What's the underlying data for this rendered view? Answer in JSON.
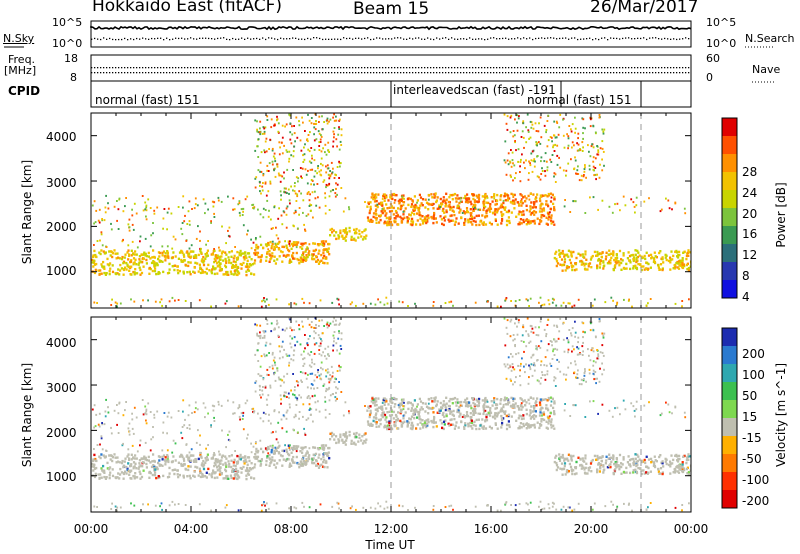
{
  "header": {
    "station": "Hokkaido East (fitACF)",
    "beam": "Beam 15",
    "date": "26/Mar/2017"
  },
  "status_panel": {
    "nsky_label": "N.Sky",
    "nsearch_label": "N.Search",
    "noise_ticks_left": [
      "10^5",
      "10^0"
    ],
    "noise_ticks_right": [
      "10^5",
      "10^0"
    ],
    "freq_label_1": "Freq.",
    "freq_label_2": "[MHz]",
    "freq_ticks": [
      "18",
      "8"
    ],
    "nave_label": "Nave",
    "nave_ticks": [
      "60",
      "0"
    ],
    "cpid_label": "CPID",
    "cpid_segments": [
      {
        "label": "normal (fast) 151",
        "start_hour": 0.0
      },
      {
        "label": "interleavedscan (fast) -191",
        "start_hour": 12.0
      },
      {
        "label": "normal (fast) 151",
        "start_hour": 18.8
      }
    ]
  },
  "chart_data": [
    {
      "type": "heatmap",
      "panel": "power",
      "ylabel": "Slant Range [km]",
      "y_ticks": [
        "1000",
        "2000",
        "3000",
        "4000"
      ],
      "ylim": [
        200,
        4500
      ],
      "xlim_hours": [
        0,
        24
      ],
      "colorbar_label": "Power [dB]",
      "colorbar_ticks": [
        "28",
        "24",
        "20",
        "16",
        "12",
        "8",
        "4"
      ],
      "colorbar_colors": [
        "#e00000",
        "#ff5000",
        "#ff9000",
        "#f2c200",
        "#c8d400",
        "#7cc43c",
        "#3a9a52",
        "#2b6f7a",
        "#2838b0",
        "#1010e0"
      ],
      "scatter_bands": [
        {
          "start_hour": 0.0,
          "end_hour": 6.5,
          "range_km": [
            950,
            1500
          ],
          "dB": 24
        },
        {
          "start_hour": 6.5,
          "end_hour": 9.5,
          "range_km": [
            1200,
            1700
          ],
          "dB": 26
        },
        {
          "start_hour": 9.5,
          "end_hour": 11.0,
          "range_km": [
            1700,
            2000
          ],
          "dB": 24
        },
        {
          "start_hour": 11.0,
          "end_hour": 18.5,
          "range_km": [
            2050,
            2750
          ],
          "dB": 28
        },
        {
          "start_hour": 18.5,
          "end_hour": 24.0,
          "range_km": [
            1050,
            1500
          ],
          "dB": 24
        }
      ]
    },
    {
      "type": "heatmap",
      "panel": "velocity",
      "xlabel": "Time UT",
      "ylabel": "Slant Range [km]",
      "x_ticks": [
        "00:00",
        "04:00",
        "08:00",
        "12:00",
        "16:00",
        "20:00",
        "00:00"
      ],
      "y_ticks": [
        "1000",
        "2000",
        "3000",
        "4000"
      ],
      "ylim": [
        200,
        4500
      ],
      "xlim_hours": [
        0,
        24
      ],
      "colorbar_label": "Velocity [m s^-1]",
      "colorbar_ticks": [
        "200",
        "100",
        "50",
        "15",
        "-15",
        "-50",
        "-100",
        "-200"
      ],
      "colorbar_colors": [
        "#1c2cb0",
        "#2a7ad0",
        "#2fa8b0",
        "#3cc050",
        "#7ed850",
        "#bfbfb0",
        "#ffb000",
        "#ff7a00",
        "#ff3000",
        "#e00000"
      ],
      "ground_scatter_color": "#bfbfb0"
    }
  ]
}
